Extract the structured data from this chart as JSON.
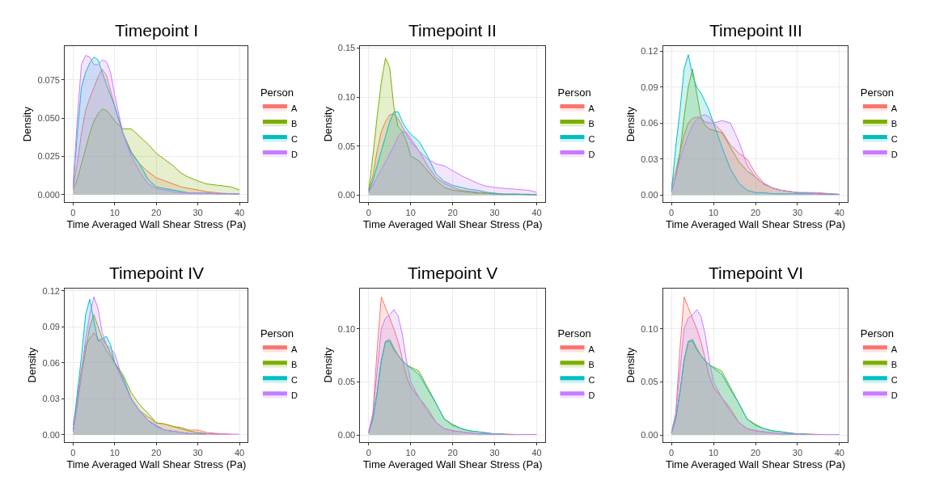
{
  "chart_data": [
    {
      "type": "area",
      "title": "Timepoint I",
      "xlabel": "Time Averaged Wall Shear Stress (Pa)",
      "ylabel": "Density",
      "legend_title": "Person",
      "legend": "right",
      "grid": true,
      "x": [
        0,
        1,
        2,
        3,
        4,
        5,
        6,
        7,
        8,
        9,
        10,
        12,
        14,
        16,
        18,
        20,
        22,
        24,
        26,
        28,
        30,
        32,
        35,
        38,
        40
      ],
      "xlim": [
        -2,
        42
      ],
      "xticks": [
        0,
        10,
        20,
        30,
        40
      ],
      "ylim": [
        -0.005,
        0.097
      ],
      "yticks": [
        {
          "value": 0,
          "label": "0.000"
        },
        {
          "value": 0.025,
          "label": "0.025"
        },
        {
          "value": 0.05,
          "label": "0.050"
        },
        {
          "value": 0.075,
          "label": "0.075"
        }
      ],
      "series": [
        {
          "name": "A",
          "color": "#f8766d",
          "values": [
            0.005,
            0.02,
            0.04,
            0.055,
            0.063,
            0.07,
            0.077,
            0.082,
            0.078,
            0.068,
            0.058,
            0.04,
            0.028,
            0.02,
            0.015,
            0.011,
            0.009,
            0.007,
            0.005,
            0.004,
            0.003,
            0.002,
            0.001,
            0.0005,
            0.0002
          ]
        },
        {
          "name": "B",
          "color": "#7cae00",
          "values": [
            0.003,
            0.01,
            0.02,
            0.03,
            0.04,
            0.048,
            0.053,
            0.056,
            0.055,
            0.052,
            0.048,
            0.043,
            0.043,
            0.038,
            0.033,
            0.027,
            0.023,
            0.019,
            0.014,
            0.011,
            0.009,
            0.007,
            0.006,
            0.005,
            0.003
          ]
        },
        {
          "name": "C",
          "color": "#00bfc4",
          "values": [
            0.005,
            0.04,
            0.07,
            0.08,
            0.086,
            0.09,
            0.088,
            0.08,
            0.072,
            0.065,
            0.058,
            0.04,
            0.027,
            0.02,
            0.01,
            0.005,
            0.004,
            0.003,
            0.002,
            0.001,
            0.001,
            0.001,
            0.0005,
            0.0005,
            0.0005
          ]
        },
        {
          "name": "D",
          "color": "#c77cff",
          "values": [
            0.005,
            0.05,
            0.085,
            0.091,
            0.09,
            0.085,
            0.085,
            0.088,
            0.087,
            0.08,
            0.065,
            0.04,
            0.025,
            0.015,
            0.007,
            0.004,
            0.003,
            0.002,
            0.001,
            0.001,
            0.001,
            0.001,
            0.0005,
            0.0005,
            0.0005
          ]
        }
      ]
    },
    {
      "type": "area",
      "title": "Timepoint II",
      "xlabel": "Time Averaged Wall Shear Stress (Pa)",
      "ylabel": "Density",
      "legend_title": "Person",
      "legend": "right",
      "grid": true,
      "x": [
        0,
        1,
        2,
        3,
        4,
        5,
        6,
        7,
        8,
        9,
        10,
        12,
        14,
        16,
        18,
        20,
        22,
        24,
        26,
        28,
        30,
        32,
        35,
        38,
        40
      ],
      "xlim": [
        -2,
        42
      ],
      "xticks": [
        0,
        10,
        20,
        30,
        40
      ],
      "ylim": [
        -0.0072,
        0.152
      ],
      "yticks": [
        {
          "value": 0,
          "label": "0.00"
        },
        {
          "value": 0.05,
          "label": "0.05"
        },
        {
          "value": 0.1,
          "label": "0.10"
        },
        {
          "value": 0.15,
          "label": "0.15"
        }
      ],
      "series": [
        {
          "name": "A",
          "color": "#f8766d",
          "values": [
            0.005,
            0.02,
            0.045,
            0.065,
            0.075,
            0.082,
            0.083,
            0.078,
            0.07,
            0.062,
            0.055,
            0.045,
            0.03,
            0.018,
            0.012,
            0.008,
            0.005,
            0.004,
            0.003,
            0.002,
            0.002,
            0.001,
            0.001,
            0.0005,
            0.0005
          ]
        },
        {
          "name": "B",
          "color": "#7cae00",
          "values": [
            0.005,
            0.04,
            0.08,
            0.115,
            0.14,
            0.13,
            0.09,
            0.07,
            0.065,
            0.055,
            0.04,
            0.035,
            0.025,
            0.015,
            0.008,
            0.005,
            0.004,
            0.003,
            0.002,
            0.002,
            0.001,
            0.001,
            0.001,
            0.001,
            0.0005
          ]
        },
        {
          "name": "C",
          "color": "#00bfc4",
          "values": [
            0.003,
            0.015,
            0.03,
            0.045,
            0.06,
            0.075,
            0.085,
            0.085,
            0.075,
            0.068,
            0.062,
            0.055,
            0.04,
            0.022,
            0.014,
            0.01,
            0.008,
            0.006,
            0.005,
            0.003,
            0.002,
            0.001,
            0.001,
            0.0005,
            0.0005
          ]
        },
        {
          "name": "D",
          "color": "#c77cff",
          "values": [
            0.003,
            0.01,
            0.018,
            0.026,
            0.034,
            0.042,
            0.05,
            0.06,
            0.065,
            0.064,
            0.058,
            0.045,
            0.037,
            0.032,
            0.03,
            0.025,
            0.02,
            0.016,
            0.012,
            0.009,
            0.008,
            0.007,
            0.006,
            0.005,
            0.003
          ]
        }
      ]
    },
    {
      "type": "area",
      "title": "Timepoint III",
      "xlabel": "Time Averaged Wall Shear Stress (Pa)",
      "ylabel": "Density",
      "legend_title": "Person",
      "legend": "right",
      "grid": true,
      "x": [
        0,
        1,
        2,
        3,
        4,
        5,
        6,
        7,
        8,
        9,
        10,
        12,
        14,
        16,
        18,
        20,
        22,
        24,
        26,
        28,
        30,
        32,
        35,
        38,
        40
      ],
      "xlim": [
        -2,
        42
      ],
      "xticks": [
        0,
        10,
        20,
        30,
        40
      ],
      "ylim": [
        -0.006,
        0.124
      ],
      "yticks": [
        {
          "value": 0,
          "label": "0.00"
        },
        {
          "value": 0.03,
          "label": "0.03"
        },
        {
          "value": 0.06,
          "label": "0.06"
        },
        {
          "value": 0.09,
          "label": "0.09"
        },
        {
          "value": 0.12,
          "label": "0.12"
        }
      ],
      "series": [
        {
          "name": "A",
          "color": "#f8766d",
          "values": [
            0.008,
            0.02,
            0.035,
            0.05,
            0.06,
            0.064,
            0.065,
            0.064,
            0.061,
            0.06,
            0.06,
            0.053,
            0.042,
            0.035,
            0.03,
            0.018,
            0.01,
            0.006,
            0.004,
            0.003,
            0.002,
            0.002,
            0.002,
            0.001,
            0.0005
          ]
        },
        {
          "name": "B",
          "color": "#7cae00",
          "values": [
            0.003,
            0.015,
            0.035,
            0.065,
            0.09,
            0.105,
            0.085,
            0.065,
            0.058,
            0.055,
            0.054,
            0.052,
            0.04,
            0.028,
            0.02,
            0.015,
            0.009,
            0.006,
            0.004,
            0.003,
            0.002,
            0.002,
            0.001,
            0.001,
            0.0005
          ]
        },
        {
          "name": "C",
          "color": "#00bfc4",
          "values": [
            0.003,
            0.04,
            0.07,
            0.105,
            0.117,
            0.1,
            0.09,
            0.085,
            0.078,
            0.07,
            0.06,
            0.04,
            0.022,
            0.01,
            0.004,
            0.002,
            0.002,
            0.001,
            0.001,
            0.001,
            0.001,
            0.001,
            0.001,
            0.0005,
            0.0005
          ]
        },
        {
          "name": "D",
          "color": "#c77cff",
          "values": [
            0.003,
            0.015,
            0.03,
            0.04,
            0.05,
            0.058,
            0.063,
            0.066,
            0.067,
            0.065,
            0.06,
            0.062,
            0.06,
            0.045,
            0.025,
            0.015,
            0.009,
            0.006,
            0.004,
            0.003,
            0.002,
            0.002,
            0.001,
            0.001,
            0.0005
          ]
        }
      ]
    },
    {
      "type": "area",
      "title": "Timepoint IV",
      "xlabel": "Time Averaged Wall Shear Stress (Pa)",
      "ylabel": "Density",
      "legend_title": "Person",
      "legend": "right",
      "grid": true,
      "x": [
        0,
        1,
        2,
        3,
        4,
        5,
        6,
        7,
        8,
        9,
        10,
        12,
        14,
        16,
        18,
        20,
        22,
        24,
        26,
        28,
        30,
        32,
        35,
        38,
        40
      ],
      "xlim": [
        -2,
        42
      ],
      "xticks": [
        0,
        10,
        20,
        30,
        40
      ],
      "ylim": [
        -0.006,
        0.122
      ],
      "yticks": [
        {
          "value": 0,
          "label": "0.00"
        },
        {
          "value": 0.03,
          "label": "0.03"
        },
        {
          "value": 0.06,
          "label": "0.06"
        },
        {
          "value": 0.09,
          "label": "0.09"
        },
        {
          "value": 0.12,
          "label": "0.12"
        }
      ],
      "series": [
        {
          "name": "A",
          "color": "#f8766d",
          "values": [
            0.008,
            0.03,
            0.055,
            0.075,
            0.08,
            0.085,
            0.08,
            0.077,
            0.07,
            0.065,
            0.06,
            0.045,
            0.03,
            0.02,
            0.015,
            0.01,
            0.009,
            0.007,
            0.006,
            0.004,
            0.004,
            0.002,
            0.001,
            0.0005,
            null
          ]
        },
        {
          "name": "B",
          "color": "#7cae00",
          "values": [
            0.003,
            0.025,
            0.05,
            0.07,
            0.09,
            0.1,
            0.09,
            0.08,
            0.075,
            0.068,
            0.06,
            0.05,
            0.035,
            0.025,
            0.018,
            0.01,
            0.009,
            0.007,
            0.005,
            0.003,
            0.002,
            0.001,
            0.0005,
            null,
            null
          ]
        },
        {
          "name": "C",
          "color": "#00bfc4",
          "values": [
            0.003,
            0.035,
            0.065,
            0.1,
            0.113,
            0.095,
            0.078,
            0.08,
            0.082,
            0.075,
            0.06,
            0.048,
            0.03,
            0.02,
            0.012,
            0.007,
            0.004,
            0.003,
            0.002,
            0.001,
            0.001,
            0.0005,
            null,
            null,
            null
          ]
        },
        {
          "name": "D",
          "color": "#c77cff",
          "values": [
            0.003,
            0.025,
            0.05,
            0.08,
            0.1,
            0.115,
            0.105,
            0.085,
            0.075,
            0.072,
            0.068,
            0.045,
            0.03,
            0.02,
            0.012,
            0.008,
            0.004,
            0.003,
            0.002,
            0.001,
            0.001,
            0.001,
            0.0005,
            0.0005,
            0.0005
          ]
        }
      ]
    },
    {
      "type": "area",
      "title": "Timepoint V",
      "xlabel": "Time Averaged Wall Shear Stress (Pa)",
      "ylabel": "Density",
      "legend_title": "Person",
      "legend": "right",
      "grid": true,
      "x": [
        0,
        1,
        2,
        3,
        4,
        5,
        6,
        7,
        8,
        9,
        10,
        12,
        14,
        16,
        18,
        20,
        22,
        24,
        26,
        28,
        30,
        32,
        35,
        38,
        40
      ],
      "xlim": [
        -2,
        42
      ],
      "xticks": [
        0,
        10,
        20,
        30,
        40
      ],
      "ylim": [
        -0.0066,
        0.138
      ],
      "yticks": [
        {
          "value": 0,
          "label": "0.00"
        },
        {
          "value": 0.05,
          "label": "0.05"
        },
        {
          "value": 0.1,
          "label": "0.10"
        }
      ],
      "series": [
        {
          "name": "A",
          "color": "#f8766d",
          "values": [
            0.003,
            0.02,
            0.08,
            0.13,
            0.12,
            0.11,
            0.1,
            0.088,
            0.072,
            0.055,
            0.045,
            0.035,
            0.025,
            0.012,
            0.006,
            0.004,
            0.003,
            0.002,
            0.001,
            0.001,
            0.0005,
            null,
            null,
            null,
            null
          ]
        },
        {
          "name": "B",
          "color": "#7cae00",
          "values": [
            0.002,
            0.015,
            0.04,
            0.07,
            0.088,
            0.088,
            0.08,
            0.075,
            0.07,
            0.066,
            0.064,
            0.06,
            0.045,
            0.03,
            0.015,
            0.01,
            0.006,
            0.004,
            0.003,
            0.002,
            0.001,
            0.001,
            0.0005,
            null,
            null
          ]
        },
        {
          "name": "C",
          "color": "#00bfc4",
          "values": [
            0.002,
            0.015,
            0.04,
            0.07,
            0.088,
            0.09,
            0.082,
            0.075,
            0.07,
            0.066,
            0.063,
            0.057,
            0.043,
            0.03,
            0.015,
            0.009,
            0.006,
            0.004,
            0.003,
            0.002,
            0.001,
            0.001,
            null,
            null,
            null
          ]
        },
        {
          "name": "D",
          "color": "#c77cff",
          "values": [
            0.002,
            0.02,
            0.06,
            0.1,
            0.11,
            0.113,
            0.118,
            0.112,
            0.095,
            0.07,
            0.05,
            0.035,
            0.022,
            0.012,
            0.006,
            0.004,
            0.003,
            0.002,
            0.001,
            0.001,
            0.001,
            0.0005,
            0.0005,
            0.0005,
            0.0005
          ]
        }
      ]
    },
    {
      "type": "area",
      "title": "Timepoint VI",
      "xlabel": "Time Averaged Wall Shear Stress (Pa)",
      "ylabel": "Density",
      "legend_title": "Person",
      "legend": "right",
      "grid": true,
      "x": [
        0,
        1,
        2,
        3,
        4,
        5,
        6,
        7,
        8,
        9,
        10,
        12,
        14,
        16,
        18,
        20,
        22,
        24,
        26,
        28,
        30,
        32,
        35,
        38,
        40
      ],
      "xlim": [
        -2,
        42
      ],
      "xticks": [
        0,
        10,
        20,
        30,
        40
      ],
      "ylim": [
        -0.0066,
        0.138
      ],
      "yticks": [
        {
          "value": 0,
          "label": "0.00"
        },
        {
          "value": 0.05,
          "label": "0.05"
        },
        {
          "value": 0.1,
          "label": "0.10"
        }
      ],
      "series": [
        {
          "name": "A",
          "color": "#f8766d",
          "values": [
            0.003,
            0.02,
            0.08,
            0.13,
            0.12,
            0.11,
            0.1,
            0.088,
            0.072,
            0.055,
            0.045,
            0.035,
            0.025,
            0.012,
            0.006,
            0.004,
            0.003,
            0.002,
            0.001,
            0.001,
            0.0005,
            null,
            null,
            null,
            null
          ]
        },
        {
          "name": "B",
          "color": "#7cae00",
          "values": [
            0.002,
            0.015,
            0.04,
            0.07,
            0.088,
            0.088,
            0.08,
            0.075,
            0.07,
            0.066,
            0.064,
            0.06,
            0.045,
            0.03,
            0.015,
            0.01,
            0.006,
            0.004,
            0.003,
            0.002,
            0.001,
            0.001,
            0.0005,
            null,
            null
          ]
        },
        {
          "name": "C",
          "color": "#00bfc4",
          "values": [
            0.002,
            0.015,
            0.04,
            0.07,
            0.088,
            0.09,
            0.082,
            0.075,
            0.07,
            0.066,
            0.063,
            0.057,
            0.043,
            0.03,
            0.015,
            0.009,
            0.006,
            0.004,
            0.003,
            0.002,
            0.001,
            0.001,
            null,
            null,
            null
          ]
        },
        {
          "name": "D",
          "color": "#c77cff",
          "values": [
            0.002,
            0.02,
            0.06,
            0.1,
            0.11,
            0.113,
            0.118,
            0.112,
            0.095,
            0.07,
            0.05,
            0.035,
            0.022,
            0.012,
            0.006,
            0.004,
            0.003,
            0.002,
            0.001,
            0.001,
            0.001,
            0.0005,
            0.0005,
            0.0005,
            0.0005
          ]
        }
      ]
    }
  ]
}
